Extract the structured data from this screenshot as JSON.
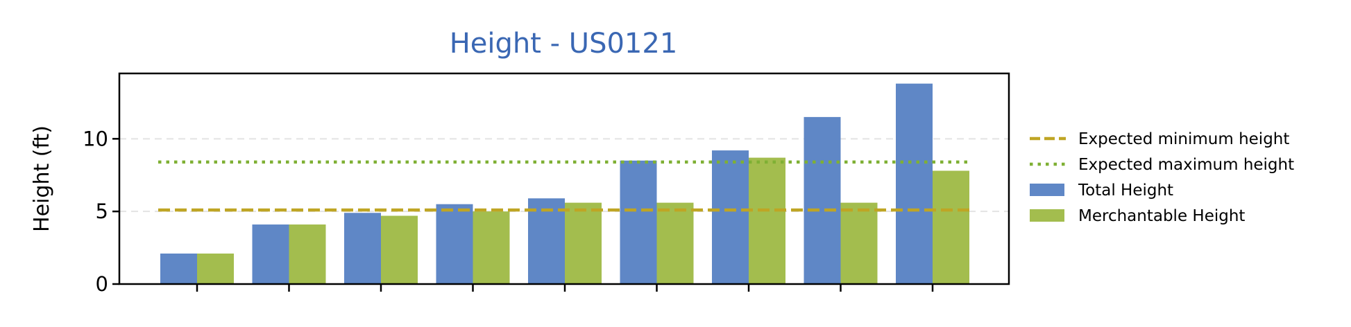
{
  "chart_data": {
    "type": "bar",
    "title": "Height - US0121",
    "xlabel": "",
    "ylabel": "Height (ft)",
    "ylim": [
      0,
      14.5
    ],
    "yticks": [
      0,
      5,
      10
    ],
    "categories": [
      "",
      "",
      "",
      "",
      "",
      "",
      "",
      "",
      ""
    ],
    "series": [
      {
        "name": "Total Height",
        "values": [
          2.1,
          4.1,
          4.9,
          5.5,
          5.9,
          8.5,
          9.2,
          11.5,
          13.8
        ],
        "color": "#5f87c6"
      },
      {
        "name": "Merchantable Height",
        "values": [
          2.1,
          4.1,
          4.7,
          5.0,
          5.6,
          5.6,
          8.7,
          5.6,
          7.8
        ],
        "color": "#a3bd4e"
      }
    ],
    "reference_lines": [
      {
        "name": "Expected minimum height",
        "value": 5.1,
        "style": "dashed",
        "color": "#bfa524"
      },
      {
        "name": "Expected maximum height",
        "value": 8.4,
        "style": "dotted",
        "color": "#7fb034"
      }
    ],
    "grid": {
      "y": true,
      "x": false
    },
    "legend_position": "right",
    "title_color": "#3a67b3"
  }
}
